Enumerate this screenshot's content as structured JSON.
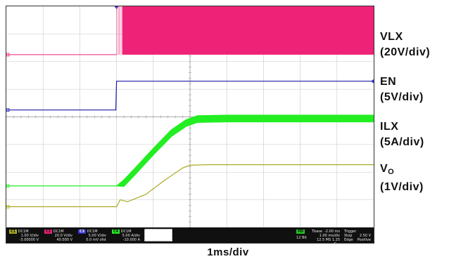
{
  "chart_data": {
    "type": "line",
    "title": "",
    "xlabel": "1ms/div",
    "ylabel": "",
    "x_unit": "ms",
    "x_divisions": 10,
    "y_divisions": 8,
    "grid": true,
    "xlim": [
      0,
      10
    ],
    "trigger_time_ms": 3.0,
    "series": [
      {
        "name": "VLX",
        "scale_label": "(20V/div)",
        "channel": "C2",
        "color": "#ee2277",
        "ground_div": 6.25,
        "scale_per_div": 20,
        "unit": "V",
        "style": "switching",
        "points": [
          [
            0,
            0
          ],
          [
            3.0,
            0
          ],
          [
            3.05,
            0
          ],
          [
            10,
            0
          ]
        ],
        "switching_start_ms": 3.0,
        "switching_high_v": 36
      },
      {
        "name": "EN",
        "scale_label": "(5V/div)",
        "channel": "C3",
        "color": "#1a1aa8",
        "ground_div": 4.25,
        "scale_per_div": 5,
        "unit": "V",
        "style": "line",
        "points": [
          [
            0,
            0
          ],
          [
            2.98,
            0
          ],
          [
            3.0,
            5.2
          ],
          [
            10,
            5.2
          ]
        ]
      },
      {
        "name": "ILX",
        "scale_label": "(5A/div)",
        "channel": "C4",
        "color": "#22ee22",
        "ground_div": 1.5,
        "scale_per_div": 5,
        "unit": "A",
        "style": "band",
        "points": [
          [
            0,
            0
          ],
          [
            3.0,
            0
          ],
          [
            3.2,
            0.5
          ],
          [
            3.5,
            2.6
          ],
          [
            4.0,
            6.2
          ],
          [
            4.5,
            9.6
          ],
          [
            4.9,
            11.4
          ],
          [
            5.2,
            12.1
          ],
          [
            6.0,
            12.2
          ],
          [
            10,
            12.2
          ]
        ],
        "band_width_a": 1.2
      },
      {
        "name": "V",
        "name_sub": "O",
        "scale_label": "(1V/div)",
        "channel": "C1",
        "color": "#aaaa22",
        "ground_div": 0.75,
        "scale_per_div": 1,
        "unit": "V",
        "style": "line",
        "points": [
          [
            0,
            0
          ],
          [
            3.0,
            0
          ],
          [
            3.1,
            0.25
          ],
          [
            3.3,
            0.18
          ],
          [
            3.8,
            0.45
          ],
          [
            4.3,
            0.95
          ],
          [
            4.8,
            1.4
          ],
          [
            5.0,
            1.5
          ],
          [
            5.5,
            1.52
          ],
          [
            10,
            1.52
          ]
        ]
      }
    ]
  },
  "readout": {
    "c1": {
      "tag": "C1",
      "mode": "DC1M",
      "bw": "BWI",
      "scale": "1.00 V/div",
      "offset": "-3.00000 V",
      "color": "#aaaa22"
    },
    "c2": {
      "tag": "C2",
      "mode": "DC1M",
      "bw": "BWI",
      "scale": "20.0 V/div",
      "offset": "40.000 V",
      "color": "#ee2277"
    },
    "c3": {
      "tag": "C3",
      "mode": "DC1M",
      "bw": "BWI",
      "scale": "5.00 V/div",
      "offset": "0.0 mV ofst",
      "color": "#3333cc"
    },
    "c4": {
      "tag": "C4",
      "mode": "DC1M",
      "bw": "BWI",
      "scale": "5.00 A/div",
      "offset": "-10.000 A",
      "color": "#22ee22"
    },
    "hd": {
      "tag": "HD",
      "bits": "12 Bit",
      "color": "#22cc22"
    },
    "timebase": {
      "label": "Tbase",
      "value": "-2.00 ms",
      "scale": "1.00 ms/div",
      "rate": "12.5 MS 1.25 G..."
    },
    "trigger": {
      "label": "Trigger",
      "mode": "Stop",
      "type": "Edge",
      "level": "2.50 V",
      "slope": "Positive"
    }
  }
}
